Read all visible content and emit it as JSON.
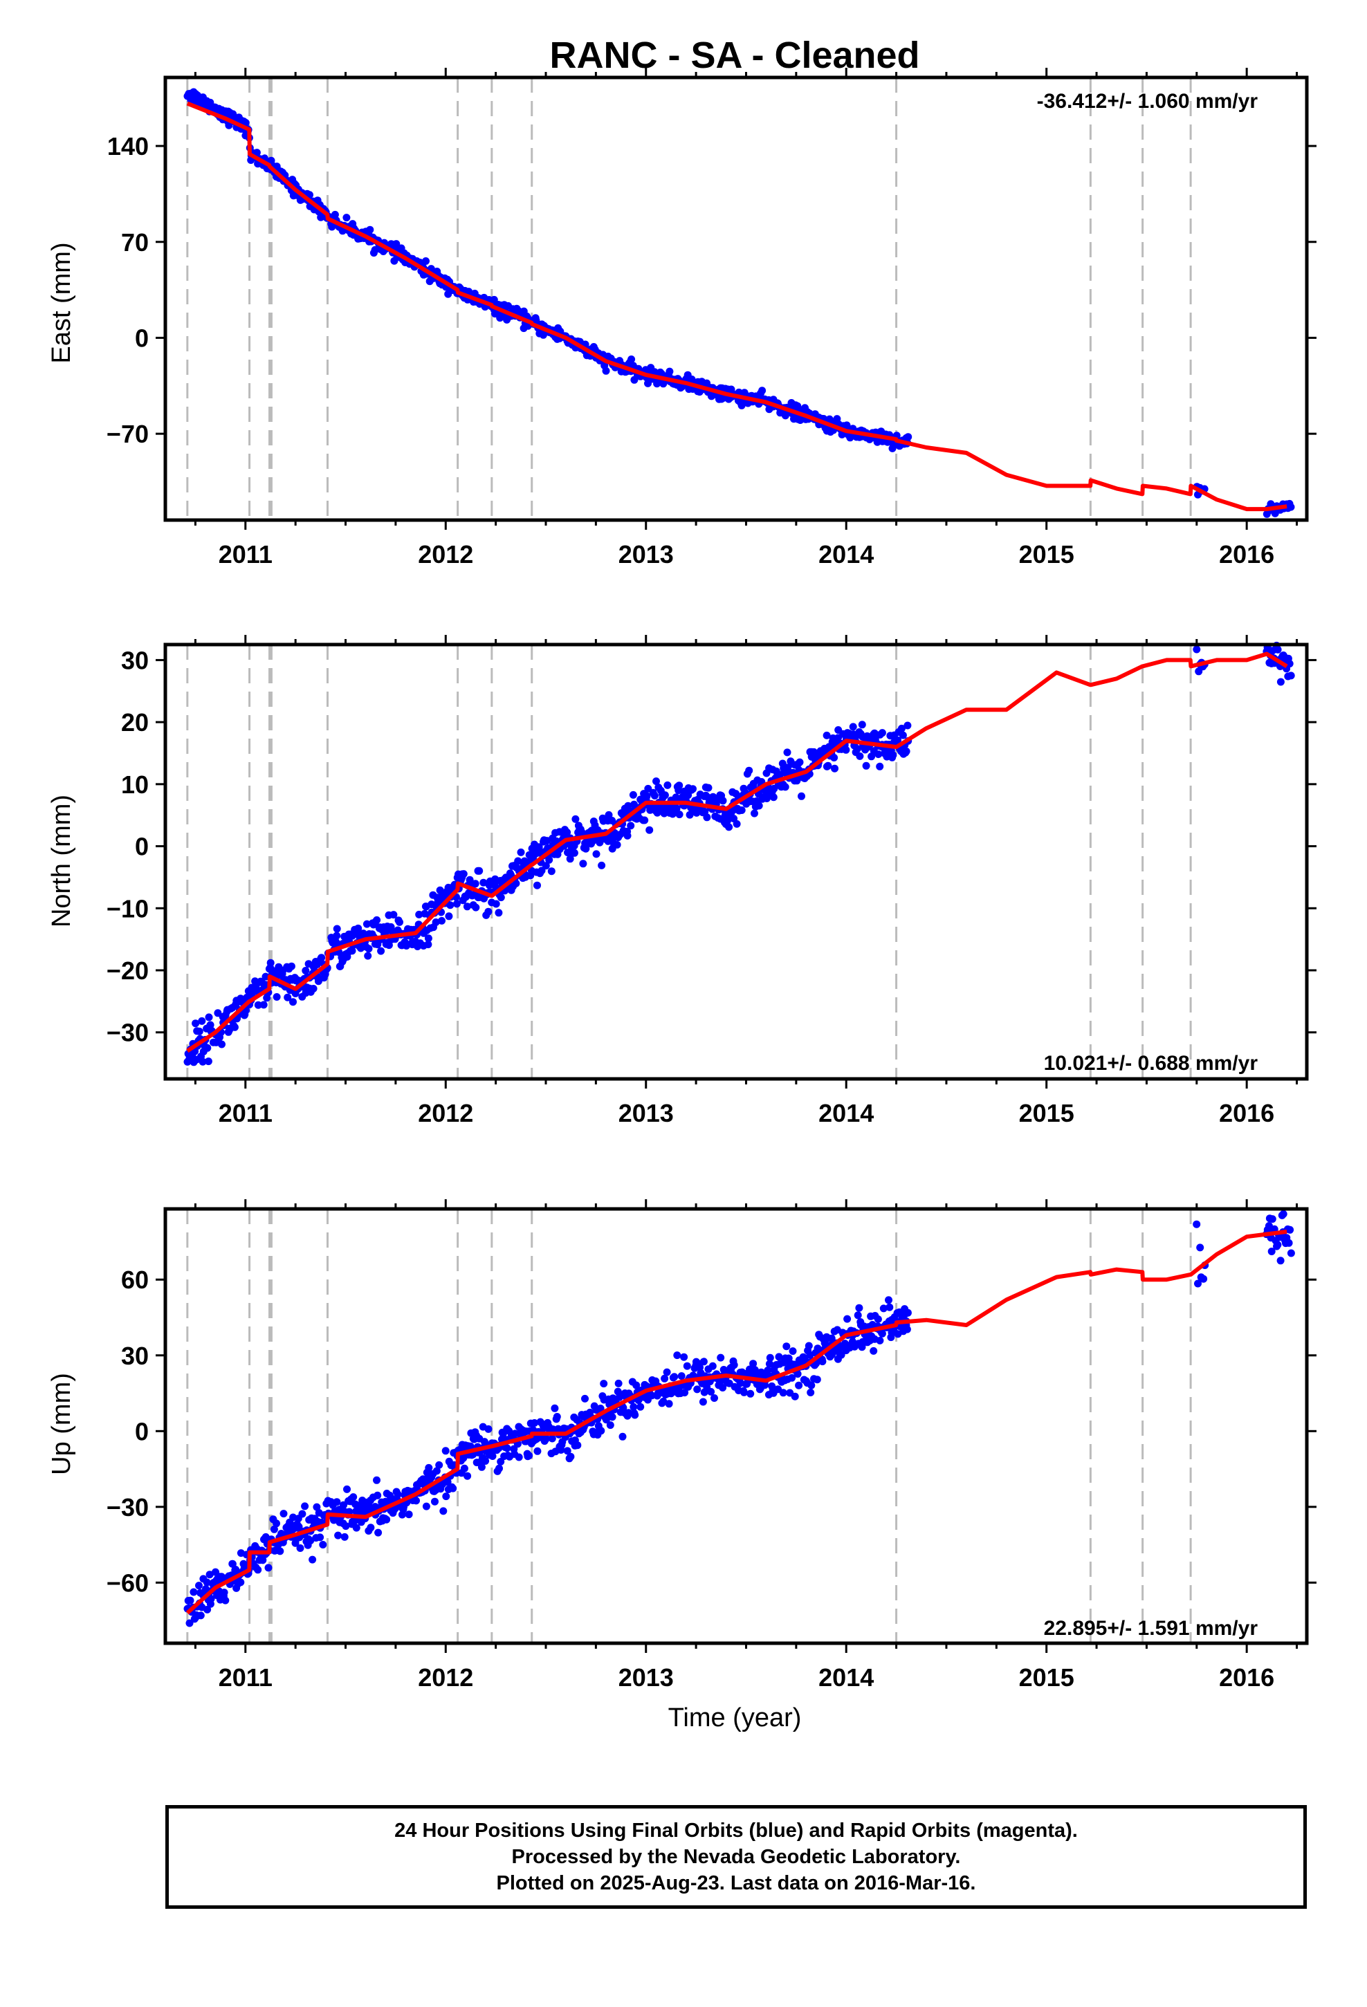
{
  "title": "RANC  - SA - Cleaned",
  "colors": {
    "final_orbits": "#0000ff",
    "model": "#ff0000",
    "event_lines": "#bbbbbb",
    "frame": "#000000"
  },
  "footer": {
    "line1": "24 Hour Positions Using Final Orbits (blue) and Rapid Orbits (magenta).",
    "line2": "Processed by the Nevada Geodetic Laboratory.",
    "line3": "Plotted on 2025-Aug-23. Last data on 2016-Mar-16."
  },
  "chart_data": [
    {
      "type": "scatter",
      "ylabel": "East (mm)",
      "xlim": [
        2010.6,
        2016.3
      ],
      "ylim": [
        -133,
        190
      ],
      "xticks": [
        2011,
        2012,
        2013,
        2014,
        2015,
        2016
      ],
      "yticks": [
        140,
        70,
        0,
        -70
      ],
      "ytick_labels": [
        "140",
        "70",
        "0",
        "−70"
      ],
      "rate_label": "-36.412+/- 1.060 mm/yr",
      "rate_position": "top-right",
      "event_lines": [
        2010.71,
        2011.02,
        2011.12,
        2011.13,
        2011.41,
        2012.06,
        2012.23,
        2012.43,
        2014.25,
        2015.22,
        2015.48,
        2015.72
      ],
      "model": {
        "x": [
          2010.71,
          2010.9,
          2011.019,
          2011.021,
          2011.119,
          2011.121,
          2011.25,
          2011.409,
          2011.411,
          2011.6,
          2011.8,
          2012.059,
          2012.061,
          2012.229,
          2012.231,
          2012.429,
          2012.431,
          2012.6,
          2012.8,
          2013.0,
          2013.2,
          2013.4,
          2013.6,
          2013.8,
          2014.0,
          2014.249,
          2014.251,
          2014.4,
          2014.6,
          2014.8,
          2015.0,
          2015.219,
          2015.221,
          2015.35,
          2015.479,
          2015.481,
          2015.6,
          2015.719,
          2015.721,
          2015.85,
          2016.0,
          2016.1,
          2016.2
        ],
        "y": [
          171,
          160,
          152,
          134,
          126,
          125,
          108,
          90,
          87,
          74,
          58,
          35,
          33,
          24,
          23,
          11,
          10,
          0,
          -17,
          -27,
          -33,
          -41,
          -47,
          -57,
          -68,
          -74,
          -75,
          -80,
          -84,
          -100,
          -108,
          -108,
          -104,
          -110,
          -114,
          -108,
          -110,
          -114,
          -108,
          -118,
          -125,
          -125,
          -123
        ]
      },
      "observed": {
        "segments": [
          {
            "x_start": 2010.71,
            "x_end": 2014.31,
            "count": 900,
            "noise": 2.5
          },
          {
            "x_start": 2015.75,
            "x_end": 2015.79,
            "count": 6,
            "noise": 4
          },
          {
            "x_start": 2016.1,
            "x_end": 2016.22,
            "count": 25,
            "noise": 2
          }
        ],
        "offsets": [
          {
            "x_start": 2010.71,
            "x_end": 2011.0,
            "delta": 8
          }
        ]
      }
    },
    {
      "type": "scatter",
      "ylabel": "North (mm)",
      "xlim": [
        2010.6,
        2016.3
      ],
      "ylim": [
        -37.5,
        32.5
      ],
      "xticks": [
        2011,
        2012,
        2013,
        2014,
        2015,
        2016
      ],
      "yticks": [
        30,
        20,
        10,
        0,
        -10,
        -20,
        -30
      ],
      "ytick_labels": [
        "30",
        "20",
        "10",
        "0",
        "−10",
        "−20",
        "−30"
      ],
      "rate_label": "10.021+/- 0.688 mm/yr",
      "rate_position": "bottom-right",
      "event_lines": [
        2010.71,
        2011.02,
        2011.12,
        2011.13,
        2011.41,
        2012.06,
        2012.23,
        2012.43,
        2014.25,
        2015.22,
        2015.48,
        2015.72
      ],
      "model": {
        "x": [
          2010.71,
          2010.85,
          2011.019,
          2011.021,
          2011.119,
          2011.121,
          2011.25,
          2011.409,
          2011.411,
          2011.6,
          2011.85,
          2012.059,
          2012.061,
          2012.229,
          2012.231,
          2012.429,
          2012.431,
          2012.6,
          2012.8,
          2013.0,
          2013.2,
          2013.4,
          2013.6,
          2013.8,
          2014.0,
          2014.249,
          2014.251,
          2014.4,
          2014.6,
          2014.8,
          2015.05,
          2015.219,
          2015.221,
          2015.35,
          2015.479,
          2015.481,
          2015.6,
          2015.719,
          2015.721,
          2015.85,
          2016.0,
          2016.1,
          2016.2
        ],
        "y": [
          -33,
          -30,
          -25,
          -25,
          -23,
          -21,
          -23,
          -19,
          -17,
          -15,
          -14,
          -7,
          -6,
          -8,
          -8,
          -3,
          -3,
          1,
          2,
          7,
          7,
          6,
          10,
          12,
          17,
          16,
          16,
          19,
          22,
          22,
          28,
          26,
          26,
          27,
          29,
          29,
          30,
          30,
          29,
          30,
          30,
          31,
          29
        ]
      },
      "observed": {
        "segments": [
          {
            "x_start": 2010.71,
            "x_end": 2014.31,
            "count": 900,
            "noise": 1.5
          },
          {
            "x_start": 2015.75,
            "x_end": 2015.79,
            "count": 6,
            "noise": 1
          },
          {
            "x_start": 2016.1,
            "x_end": 2016.22,
            "count": 25,
            "noise": 1.5
          }
        ],
        "offsets": []
      }
    },
    {
      "type": "scatter",
      "ylabel": "Up (mm)",
      "xlabel": "Time (year)",
      "xlim": [
        2010.6,
        2016.3
      ],
      "ylim": [
        -84,
        88
      ],
      "xticks": [
        2011,
        2012,
        2013,
        2014,
        2015,
        2016
      ],
      "yticks": [
        60,
        30,
        0,
        -30,
        -60
      ],
      "ytick_labels": [
        "60",
        "30",
        "0",
        "−30",
        "−60"
      ],
      "rate_label": "22.895+/- 1.591 mm/yr",
      "rate_position": "bottom-right",
      "event_lines": [
        2010.71,
        2011.02,
        2011.12,
        2011.13,
        2011.41,
        2012.06,
        2012.23,
        2012.43,
        2014.25,
        2015.22,
        2015.48,
        2015.72
      ],
      "model": {
        "x": [
          2010.71,
          2010.85,
          2011.019,
          2011.021,
          2011.119,
          2011.121,
          2011.25,
          2011.409,
          2011.411,
          2011.6,
          2011.85,
          2012.059,
          2012.061,
          2012.229,
          2012.231,
          2012.429,
          2012.431,
          2012.6,
          2012.8,
          2013.0,
          2013.2,
          2013.4,
          2013.6,
          2013.8,
          2014.0,
          2014.249,
          2014.251,
          2014.4,
          2014.6,
          2014.8,
          2015.05,
          2015.219,
          2015.221,
          2015.35,
          2015.479,
          2015.481,
          2015.6,
          2015.719,
          2015.721,
          2015.85,
          2016.0,
          2016.1,
          2016.2
        ],
        "y": [
          -72,
          -62,
          -55,
          -48,
          -48,
          -44,
          -41,
          -37,
          -33,
          -34,
          -25,
          -15,
          -9,
          -6,
          -6,
          -2,
          -1,
          -1,
          8,
          16,
          20,
          22,
          20,
          26,
          38,
          42,
          43,
          44,
          42,
          52,
          61,
          63,
          62,
          64,
          63,
          60,
          60,
          62,
          62,
          70,
          77,
          78,
          79
        ]
      },
      "observed": {
        "segments": [
          {
            "x_start": 2010.71,
            "x_end": 2014.31,
            "count": 900,
            "noise": 4
          },
          {
            "x_start": 2015.75,
            "x_end": 2015.79,
            "count": 6,
            "noise": 9
          },
          {
            "x_start": 2016.1,
            "x_end": 2016.22,
            "count": 25,
            "noise": 4
          }
        ],
        "offsets": []
      }
    }
  ]
}
